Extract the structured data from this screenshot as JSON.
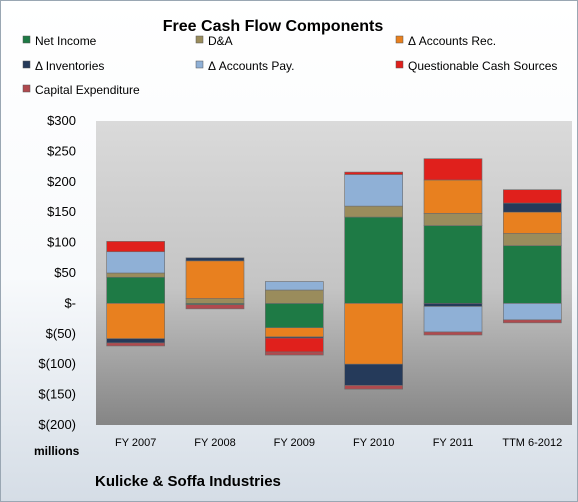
{
  "chart_data": {
    "type": "bar",
    "stacked": true,
    "title": "Free Cash Flow Components",
    "unit_label": "millions",
    "footer": "Kulicke & Soffa Industries",
    "categories": [
      "FY 2007",
      "FY 2008",
      "FY 2009",
      "FY 2010",
      "FY 2011",
      "TTM 6-2012"
    ],
    "ylim": [
      -200,
      300
    ],
    "yticks": [
      300,
      250,
      200,
      150,
      100,
      50,
      0,
      -50,
      -100,
      -150,
      -200
    ],
    "ytick_labels": [
      "$300",
      "$250",
      "$200",
      "$150",
      "$100",
      "$50",
      "$-",
      "$(50)",
      "$(100)",
      "$(150)",
      "$(200)"
    ],
    "grid": false,
    "legend_position": "top",
    "series": [
      {
        "name": "Net Income",
        "color": "#1e7a45",
        "values": [
          43,
          -2,
          -40,
          142,
          128,
          95
        ]
      },
      {
        "name": "D&A",
        "color": "#9a8c5c",
        "values": [
          7,
          8,
          22,
          18,
          20,
          20
        ]
      },
      {
        "name": "Δ Accounts Rec.",
        "color": "#e8801f",
        "values": [
          -58,
          62,
          -15,
          -100,
          55,
          35
        ]
      },
      {
        "name": "Δ Inventories",
        "color": "#253a5a",
        "values": [
          -7,
          5,
          -2,
          -35,
          -5,
          15
        ]
      },
      {
        "name": "Δ Accounts Pay.",
        "color": "#8fb0d6",
        "values": [
          35,
          0,
          14,
          52,
          -42,
          -27
        ]
      },
      {
        "name": "Questionable Cash Sources",
        "color": "#e0201c",
        "values": [
          17,
          0,
          -23,
          4,
          35,
          22
        ]
      },
      {
        "name": "Capital Expenditure",
        "color": "#b04a4e",
        "values": [
          -5,
          -7,
          -5,
          -6,
          -5,
          -5
        ]
      }
    ]
  }
}
